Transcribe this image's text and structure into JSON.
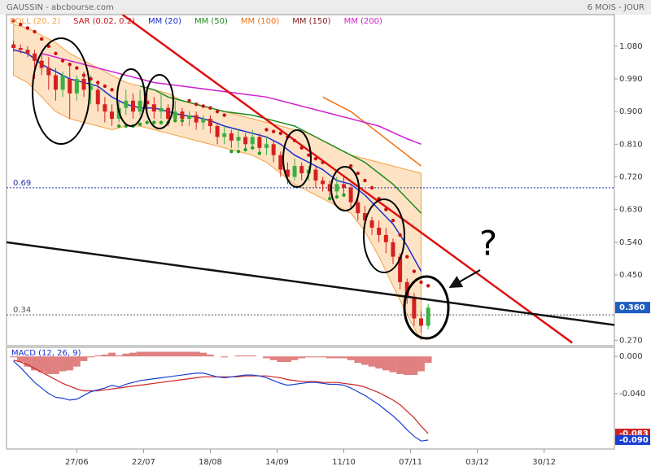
{
  "header": {
    "source": "GAUSSIN - abcbourse.com",
    "period": "6 MOIS - JOUR"
  },
  "annotation": {
    "question": "?"
  },
  "chart_data": [
    {
      "type": "candlestick",
      "x": [
        2,
        4,
        6,
        8,
        10,
        12,
        14,
        16,
        18,
        20,
        22,
        24,
        26,
        28,
        30,
        32,
        34,
        36,
        38,
        40,
        42,
        44,
        46,
        48,
        50,
        52,
        54,
        56,
        58,
        60,
        62,
        64,
        66,
        68,
        70,
        72,
        74,
        76,
        78,
        80,
        82,
        84,
        86,
        88,
        90,
        92,
        94,
        96,
        98,
        100,
        102,
        104,
        106,
        108,
        110,
        112,
        114,
        116,
        118,
        120
      ],
      "open": [
        1.085,
        1.075,
        1.07,
        1.06,
        1.04,
        1.02,
        1.0,
        0.96,
        0.99,
        0.95,
        0.99,
        0.96,
        0.96,
        0.92,
        0.9,
        0.88,
        0.91,
        0.93,
        0.9,
        0.93,
        0.92,
        0.9,
        0.91,
        0.88,
        0.9,
        0.88,
        0.89,
        0.87,
        0.88,
        0.86,
        0.83,
        0.84,
        0.82,
        0.83,
        0.81,
        0.83,
        0.8,
        0.81,
        0.78,
        0.74,
        0.72,
        0.75,
        0.73,
        0.74,
        0.71,
        0.7,
        0.68,
        0.7,
        0.69,
        0.65,
        0.62,
        0.6,
        0.58,
        0.56,
        0.54,
        0.5,
        0.43,
        0.39,
        0.33,
        0.31
      ],
      "high": [
        1.095,
        1.085,
        1.08,
        1.07,
        1.06,
        1.05,
        1.02,
        1.01,
        1.03,
        1.0,
        1.01,
        1.0,
        0.98,
        0.94,
        0.92,
        0.93,
        0.96,
        0.95,
        0.96,
        0.97,
        0.94,
        0.95,
        0.92,
        0.93,
        0.91,
        0.9,
        0.9,
        0.89,
        0.89,
        0.87,
        0.86,
        0.85,
        0.85,
        0.84,
        0.85,
        0.84,
        0.83,
        0.82,
        0.79,
        0.76,
        0.77,
        0.76,
        0.75,
        0.75,
        0.72,
        0.71,
        0.72,
        0.72,
        0.7,
        0.66,
        0.64,
        0.61,
        0.6,
        0.58,
        0.55,
        0.51,
        0.44,
        0.4,
        0.35,
        0.37
      ],
      "low": [
        1.065,
        1.06,
        1.05,
        0.99,
        1.0,
        0.96,
        0.93,
        0.94,
        0.88,
        0.93,
        0.94,
        0.92,
        0.9,
        0.87,
        0.86,
        0.87,
        0.89,
        0.88,
        0.89,
        0.9,
        0.88,
        0.88,
        0.86,
        0.87,
        0.86,
        0.86,
        0.85,
        0.85,
        0.84,
        0.81,
        0.81,
        0.8,
        0.8,
        0.79,
        0.8,
        0.79,
        0.78,
        0.76,
        0.72,
        0.7,
        0.71,
        0.71,
        0.71,
        0.69,
        0.68,
        0.66,
        0.67,
        0.67,
        0.63,
        0.6,
        0.58,
        0.56,
        0.54,
        0.51,
        0.48,
        0.41,
        0.37,
        0.31,
        0.29,
        0.3
      ],
      "close": [
        1.075,
        1.07,
        1.06,
        1.04,
        1.02,
        1.0,
        0.96,
        1.0,
        0.95,
        0.99,
        0.96,
        0.97,
        0.92,
        0.9,
        0.88,
        0.91,
        0.93,
        0.9,
        0.93,
        0.92,
        0.9,
        0.91,
        0.88,
        0.9,
        0.88,
        0.89,
        0.87,
        0.88,
        0.86,
        0.83,
        0.84,
        0.82,
        0.83,
        0.81,
        0.83,
        0.8,
        0.81,
        0.78,
        0.74,
        0.72,
        0.75,
        0.73,
        0.74,
        0.71,
        0.7,
        0.68,
        0.7,
        0.69,
        0.65,
        0.62,
        0.6,
        0.58,
        0.56,
        0.54,
        0.5,
        0.43,
        0.39,
        0.33,
        0.31,
        0.36
      ],
      "up_color": "#3cb043",
      "down_color": "#d62020",
      "last_label": "0.360",
      "last_color": "#1f5fbf",
      "xlim": [
        0,
        173
      ],
      "xticks": [
        {
          "value": 20,
          "label": "27/06"
        },
        {
          "value": 39,
          "label": "22/07"
        },
        {
          "value": 58,
          "label": "18/08"
        },
        {
          "value": 77,
          "label": "14/09"
        },
        {
          "value": 96,
          "label": "11/10"
        },
        {
          "value": 115,
          "label": "07/11"
        },
        {
          "value": 134,
          "label": "03/12"
        },
        {
          "value": 153,
          "label": "30/12"
        }
      ],
      "ylim": [
        0.255,
        1.167
      ],
      "yticks": [
        {
          "value": 1.08,
          "label": "1.080"
        },
        {
          "value": 0.99,
          "label": "0.990"
        },
        {
          "value": 0.9,
          "label": "0.900"
        },
        {
          "value": 0.81,
          "label": "0.810"
        },
        {
          "value": 0.72,
          "label": "0.720"
        },
        {
          "value": 0.63,
          "label": "0.630"
        },
        {
          "value": 0.54,
          "label": "0.540"
        },
        {
          "value": 0.45,
          "label": "0.450"
        },
        {
          "value": 0.27,
          "label": "0.270"
        }
      ],
      "bollinger": {
        "name": "BOLL (20, 2)",
        "color": "#f5a040",
        "fill": "#fde3c4",
        "x": [
          2,
          6,
          10,
          14,
          18,
          22,
          26,
          30,
          34,
          38,
          42,
          46,
          50,
          54,
          58,
          62,
          66,
          70,
          74,
          78,
          82,
          86,
          90,
          94,
          98,
          102,
          106,
          110,
          114,
          118
        ],
        "upper": [
          1.14,
          1.13,
          1.11,
          1.09,
          1.06,
          1.04,
          1.02,
          1.0,
          0.98,
          0.97,
          0.96,
          0.95,
          0.93,
          0.92,
          0.91,
          0.9,
          0.89,
          0.88,
          0.87,
          0.86,
          0.85,
          0.84,
          0.82,
          0.8,
          0.78,
          0.77,
          0.76,
          0.75,
          0.74,
          0.73
        ],
        "lower": [
          1.0,
          0.98,
          0.94,
          0.9,
          0.88,
          0.87,
          0.86,
          0.85,
          0.86,
          0.86,
          0.85,
          0.84,
          0.83,
          0.82,
          0.81,
          0.8,
          0.79,
          0.78,
          0.76,
          0.73,
          0.7,
          0.68,
          0.66,
          0.64,
          0.62,
          0.57,
          0.5,
          0.42,
          0.34,
          0.27
        ]
      },
      "sar": {
        "name": "SAR (0.02, 0.2)",
        "color": "#cc1111",
        "color_below": "#22a022",
        "values": [
          1.15,
          1.14,
          1.13,
          1.12,
          1.1,
          1.08,
          1.06,
          1.04,
          1.03,
          1.02,
          1.0,
          0.99,
          0.98,
          0.97,
          0.96,
          0.86,
          0.86,
          0.86,
          0.865,
          0.87,
          0.87,
          0.87,
          0.87,
          0.875,
          0.875,
          0.93,
          0.92,
          0.915,
          0.91,
          0.9,
          0.89,
          0.79,
          0.79,
          0.795,
          0.8,
          0.785,
          0.85,
          0.845,
          0.84,
          0.83,
          0.82,
          0.8,
          0.78,
          0.77,
          0.76,
          0.66,
          0.665,
          0.67,
          0.75,
          0.73,
          0.71,
          0.69,
          0.66,
          0.63,
          0.6,
          0.56,
          0.5,
          0.46,
          0.43,
          0.42
        ]
      },
      "series": [
        {
          "name": "MM (20)",
          "color": "#1a2fd0",
          "x": [
            2,
            6,
            10,
            14,
            18,
            22,
            26,
            30,
            34,
            38,
            42,
            46,
            50,
            54,
            58,
            62,
            66,
            70,
            74,
            78,
            82,
            86,
            90,
            94,
            98,
            102,
            106,
            110,
            114,
            118
          ],
          "values": [
            1.07,
            1.06,
            1.03,
            1.01,
            0.99,
            0.98,
            0.97,
            0.94,
            0.92,
            0.91,
            0.91,
            0.9,
            0.89,
            0.885,
            0.875,
            0.86,
            0.85,
            0.84,
            0.83,
            0.81,
            0.78,
            0.76,
            0.74,
            0.71,
            0.7,
            0.67,
            0.63,
            0.59,
            0.53,
            0.46
          ]
        },
        {
          "name": "MM (50)",
          "color": "#1e8a1e",
          "x": [
            38,
            42,
            46,
            50,
            54,
            58,
            62,
            66,
            70,
            74,
            78,
            82,
            86,
            90,
            94,
            98,
            102,
            106,
            110,
            114,
            118
          ],
          "values": [
            0.97,
            0.96,
            0.94,
            0.93,
            0.92,
            0.91,
            0.9,
            0.895,
            0.89,
            0.88,
            0.87,
            0.86,
            0.84,
            0.82,
            0.8,
            0.78,
            0.76,
            0.73,
            0.7,
            0.66,
            0.62
          ]
        },
        {
          "name": "MM (100)",
          "color": "#f07010",
          "x": [
            90,
            94,
            98,
            102,
            106,
            110,
            114,
            118
          ],
          "values": [
            0.94,
            0.92,
            0.9,
            0.87,
            0.84,
            0.81,
            0.78,
            0.75
          ]
        },
        {
          "name": "MM (150)",
          "color": "#8b1a1a",
          "x": [],
          "values": []
        },
        {
          "name": "MM (200)",
          "color": "#d020d0",
          "x": [
            10,
            18,
            26,
            34,
            42,
            50,
            58,
            66,
            74,
            82,
            90,
            98,
            106,
            114,
            118
          ],
          "values": [
            1.06,
            1.04,
            1.02,
            1.0,
            0.98,
            0.97,
            0.96,
            0.95,
            0.94,
            0.92,
            0.9,
            0.88,
            0.86,
            0.825,
            0.81
          ]
        }
      ],
      "reference_lines": [
        {
          "value": 0.69,
          "label": "0.69",
          "color": "#2233aa"
        },
        {
          "value": 0.34,
          "label": "0.34",
          "color": "#555555"
        }
      ],
      "trendlines": [
        {
          "color": "#e01010",
          "x": [
            33,
            161
          ],
          "y": [
            1.167,
            0.263
          ]
        },
        {
          "color": "#111111",
          "x": [
            0,
            173
          ],
          "y": [
            0.54,
            0.312
          ]
        }
      ]
    },
    {
      "type": "line",
      "title": "MACD (12, 26, 9)",
      "x": [
        2,
        4,
        6,
        8,
        10,
        12,
        14,
        16,
        18,
        20,
        22,
        24,
        26,
        28,
        30,
        32,
        34,
        36,
        38,
        40,
        42,
        44,
        46,
        48,
        50,
        52,
        54,
        56,
        58,
        60,
        62,
        64,
        66,
        68,
        70,
        72,
        74,
        76,
        78,
        80,
        82,
        84,
        86,
        88,
        90,
        92,
        94,
        96,
        98,
        100,
        102,
        104,
        106,
        108,
        110,
        112,
        114,
        116,
        118,
        120
      ],
      "xlim": [
        0,
        173
      ],
      "ylim": [
        -0.0996,
        0.0098
      ],
      "yticks": [
        {
          "value": 0,
          "label": "0.000"
        },
        {
          "value": -0.04,
          "label": "-0.040"
        }
      ],
      "histogram": {
        "color": "#e08080",
        "values": [
          -0.001,
          -0.006,
          -0.011,
          -0.015,
          -0.017,
          -0.019,
          -0.019,
          -0.016,
          -0.015,
          -0.011,
          -0.005,
          -0.001,
          0.001,
          0.002,
          0.004,
          0.001,
          0.003,
          0.004,
          0.005,
          0.005,
          0.005,
          0.005,
          0.005,
          0.005,
          0.005,
          0.005,
          0.005,
          0.004,
          0.002,
          0,
          -0.001,
          0,
          0.001,
          0.001,
          0.001,
          0,
          -0.002,
          -0.004,
          -0.006,
          -0.006,
          -0.004,
          -0.002,
          -0.001,
          -0.001,
          -0.001,
          -0.002,
          -0.002,
          -0.002,
          -0.004,
          -0.007,
          -0.009,
          -0.011,
          -0.013,
          -0.015,
          -0.017,
          -0.019,
          -0.02,
          -0.02,
          -0.016,
          -0.007
        ]
      },
      "series": [
        {
          "color": "#cc2222",
          "last_label": "-0.083",
          "values": [
            -0.004,
            -0.006,
            -0.009,
            -0.013,
            -0.017,
            -0.021,
            -0.025,
            -0.029,
            -0.032,
            -0.035,
            -0.037,
            -0.037,
            -0.037,
            -0.036,
            -0.035,
            -0.034,
            -0.033,
            -0.032,
            -0.031,
            -0.03,
            -0.029,
            -0.028,
            -0.027,
            -0.026,
            -0.025,
            -0.024,
            -0.023,
            -0.022,
            -0.022,
            -0.022,
            -0.022,
            -0.022,
            -0.022,
            -0.021,
            -0.021,
            -0.021,
            -0.021,
            -0.022,
            -0.023,
            -0.025,
            -0.026,
            -0.027,
            -0.027,
            -0.027,
            -0.028,
            -0.028,
            -0.028,
            -0.029,
            -0.03,
            -0.031,
            -0.033,
            -0.036,
            -0.039,
            -0.043,
            -0.047,
            -0.052,
            -0.059,
            -0.066,
            -0.075,
            -0.083
          ]
        },
        {
          "color": "#1a3fd0",
          "last_label": "-0.090",
          "values": [
            -0.005,
            -0.012,
            -0.02,
            -0.028,
            -0.034,
            -0.04,
            -0.044,
            -0.045,
            -0.047,
            -0.046,
            -0.042,
            -0.038,
            -0.036,
            -0.034,
            -0.031,
            -0.033,
            -0.03,
            -0.028,
            -0.026,
            -0.025,
            -0.024,
            -0.023,
            -0.022,
            -0.021,
            -0.02,
            -0.019,
            -0.018,
            -0.018,
            -0.02,
            -0.022,
            -0.023,
            -0.022,
            -0.021,
            -0.02,
            -0.02,
            -0.021,
            -0.023,
            -0.026,
            -0.029,
            -0.031,
            -0.03,
            -0.029,
            -0.028,
            -0.028,
            -0.029,
            -0.03,
            -0.03,
            -0.031,
            -0.034,
            -0.038,
            -0.042,
            -0.047,
            -0.052,
            -0.058,
            -0.064,
            -0.071,
            -0.079,
            -0.086,
            -0.091,
            -0.09
          ]
        }
      ]
    }
  ]
}
